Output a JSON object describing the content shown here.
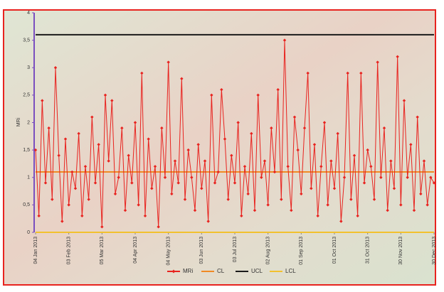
{
  "chart_data": {
    "type": "line",
    "y_label": "MRi",
    "x": [
      0,
      3,
      6,
      9,
      12,
      15,
      18,
      21,
      24,
      27,
      30,
      33,
      36,
      39,
      42,
      45,
      48,
      51,
      54,
      57,
      60,
      63,
      66,
      69,
      72,
      75,
      78,
      81,
      84,
      87,
      90,
      93,
      96,
      99,
      102,
      105,
      108,
      111,
      114,
      117,
      120,
      123,
      126,
      129,
      132,
      135,
      138,
      141,
      144,
      147,
      150,
      153,
      156,
      159,
      162,
      165,
      168,
      171,
      174,
      177,
      180,
      183,
      186,
      189,
      192,
      195,
      198,
      201,
      204,
      207,
      210,
      213,
      216,
      219,
      222,
      225,
      228,
      231,
      234,
      237,
      240,
      243,
      246,
      249,
      252,
      255,
      258,
      261,
      264,
      267,
      270,
      273,
      276,
      279,
      282,
      285,
      288,
      291,
      294,
      297,
      300,
      303,
      306,
      309,
      312,
      315,
      318,
      321,
      324,
      327,
      330,
      333,
      336,
      339,
      342,
      345,
      348,
      351,
      354,
      357,
      360
    ],
    "series": [
      {
        "name": "MRi",
        "color": "#e8231f",
        "values": [
          1.5,
          0.3,
          2.4,
          0.9,
          1.9,
          0.6,
          3.0,
          1.4,
          0.2,
          1.7,
          0.5,
          1.1,
          0.8,
          1.8,
          0.3,
          1.2,
          0.6,
          2.1,
          0.9,
          1.6,
          0.1,
          2.5,
          1.3,
          2.4,
          0.7,
          1.0,
          1.9,
          0.4,
          1.4,
          0.9,
          2.0,
          0.5,
          2.9,
          0.3,
          1.7,
          0.8,
          1.2,
          0.1,
          1.9,
          1.0,
          3.1,
          0.7,
          1.3,
          0.9,
          2.8,
          0.6,
          1.5,
          1.0,
          0.4,
          1.6,
          0.8,
          1.3,
          0.2,
          2.5,
          0.9,
          1.1,
          2.6,
          1.7,
          0.6,
          1.4,
          0.9,
          2.0,
          0.3,
          1.2,
          0.7,
          1.8,
          0.4,
          2.5,
          1.0,
          1.3,
          0.5,
          1.9,
          1.1,
          2.6,
          0.6,
          3.5,
          1.2,
          0.4,
          2.1,
          1.5,
          0.7,
          1.9,
          2.9,
          0.8,
          1.6,
          0.3,
          1.2,
          2.0,
          0.5,
          1.3,
          0.8,
          1.8,
          0.2,
          1.0,
          2.9,
          0.6,
          1.4,
          0.3,
          2.9,
          0.9,
          1.5,
          1.2,
          0.6,
          3.1,
          1.0,
          1.9,
          0.4,
          1.3,
          0.8,
          3.2,
          0.5,
          2.4,
          1.0,
          1.6,
          0.4,
          2.1,
          0.7,
          1.3,
          0.5,
          1.0,
          0.9
        ]
      }
    ],
    "limits": [
      {
        "name": "CL",
        "color": "#f08a24",
        "value": 1.1
      },
      {
        "name": "UCL",
        "color": "#1a1a1a",
        "value": 3.6
      },
      {
        "name": "LCL",
        "color": "#f2c12e",
        "value": 0
      }
    ],
    "xlim": [
      0,
      360
    ],
    "xticks": [
      {
        "value": 0,
        "label": "04 Jan 2013"
      },
      {
        "value": 30,
        "label": "03 Feb 2013"
      },
      {
        "value": 60,
        "label": "05 Mar 2013"
      },
      {
        "value": 90,
        "label": "04 Apr 2013"
      },
      {
        "value": 120,
        "label": "04 May 2013"
      },
      {
        "value": 150,
        "label": "03 Jun 2013"
      },
      {
        "value": 180,
        "label": "03 Jul 2013"
      },
      {
        "value": 210,
        "label": "02 Aug 2013"
      },
      {
        "value": 240,
        "label": "01 Sep 2013"
      },
      {
        "value": 270,
        "label": "01 Oct 2013"
      },
      {
        "value": 300,
        "label": "31 Oct 2013"
      },
      {
        "value": 330,
        "label": "30 Nov 2013"
      },
      {
        "value": 360,
        "label": "30 Dec 2013"
      }
    ],
    "ylim": [
      0,
      4
    ],
    "yticks": [
      0,
      {
        "value": 0.5,
        "label": "0,5"
      },
      1,
      {
        "value": 1.5,
        "label": "1,5"
      },
      2,
      {
        "value": 2.5,
        "label": "2,5"
      },
      3,
      {
        "value": 3.5,
        "label": "3,5"
      },
      4
    ],
    "legend": "bottom"
  }
}
